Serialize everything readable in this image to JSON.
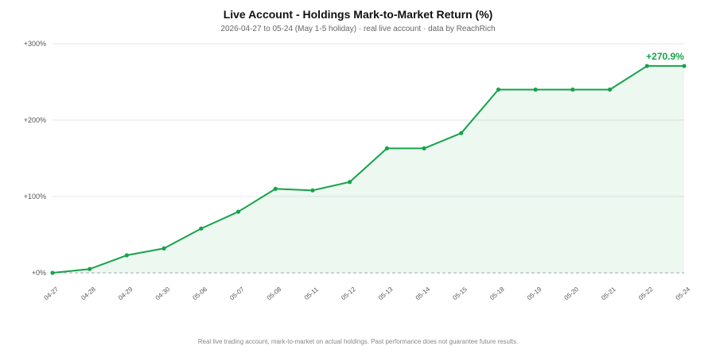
{
  "title": "Live Account - Holdings Mark-to-Market Return (%)",
  "subtitle": "2026-04-27 to 05-24 (May 1-5 holiday) · real live account · data by ReachRich",
  "footnote": "Real live trading account, mark-to-market on actual holdings. Past performance does not guarantee future results.",
  "colors": {
    "line": "#16a34a",
    "fill": "#16a34a",
    "grid": "#e5e7eb",
    "zero": "#aaaaaa"
  },
  "chart_data": {
    "type": "area",
    "title": "Live Account - Holdings Mark-to-Market Return (%)",
    "subtitle": "2026-04-27 to 05-24 (May 1-5 holiday) · real live account · data by ReachRich",
    "xlabel": "",
    "ylabel": "",
    "x": [
      "04-27",
      "04-28",
      "04-29",
      "04-30",
      "05-06",
      "05-07",
      "05-08",
      "05-11",
      "05-12",
      "05-13",
      "05-14",
      "05-15",
      "05-18",
      "05-19",
      "05-20",
      "05-21",
      "05-22",
      "05-24"
    ],
    "values": [
      0,
      5,
      23,
      32,
      58,
      80,
      110,
      108,
      119,
      163,
      163,
      183,
      240,
      240,
      240,
      240,
      270.9,
      270.9
    ],
    "ylim": [
      0,
      300
    ],
    "yticks": [
      0,
      100,
      200,
      300
    ],
    "ytick_labels": [
      "+0%",
      "+100%",
      "+200%",
      "+300%"
    ],
    "final_label": "+270.9%",
    "grid": true,
    "legend": "none"
  }
}
